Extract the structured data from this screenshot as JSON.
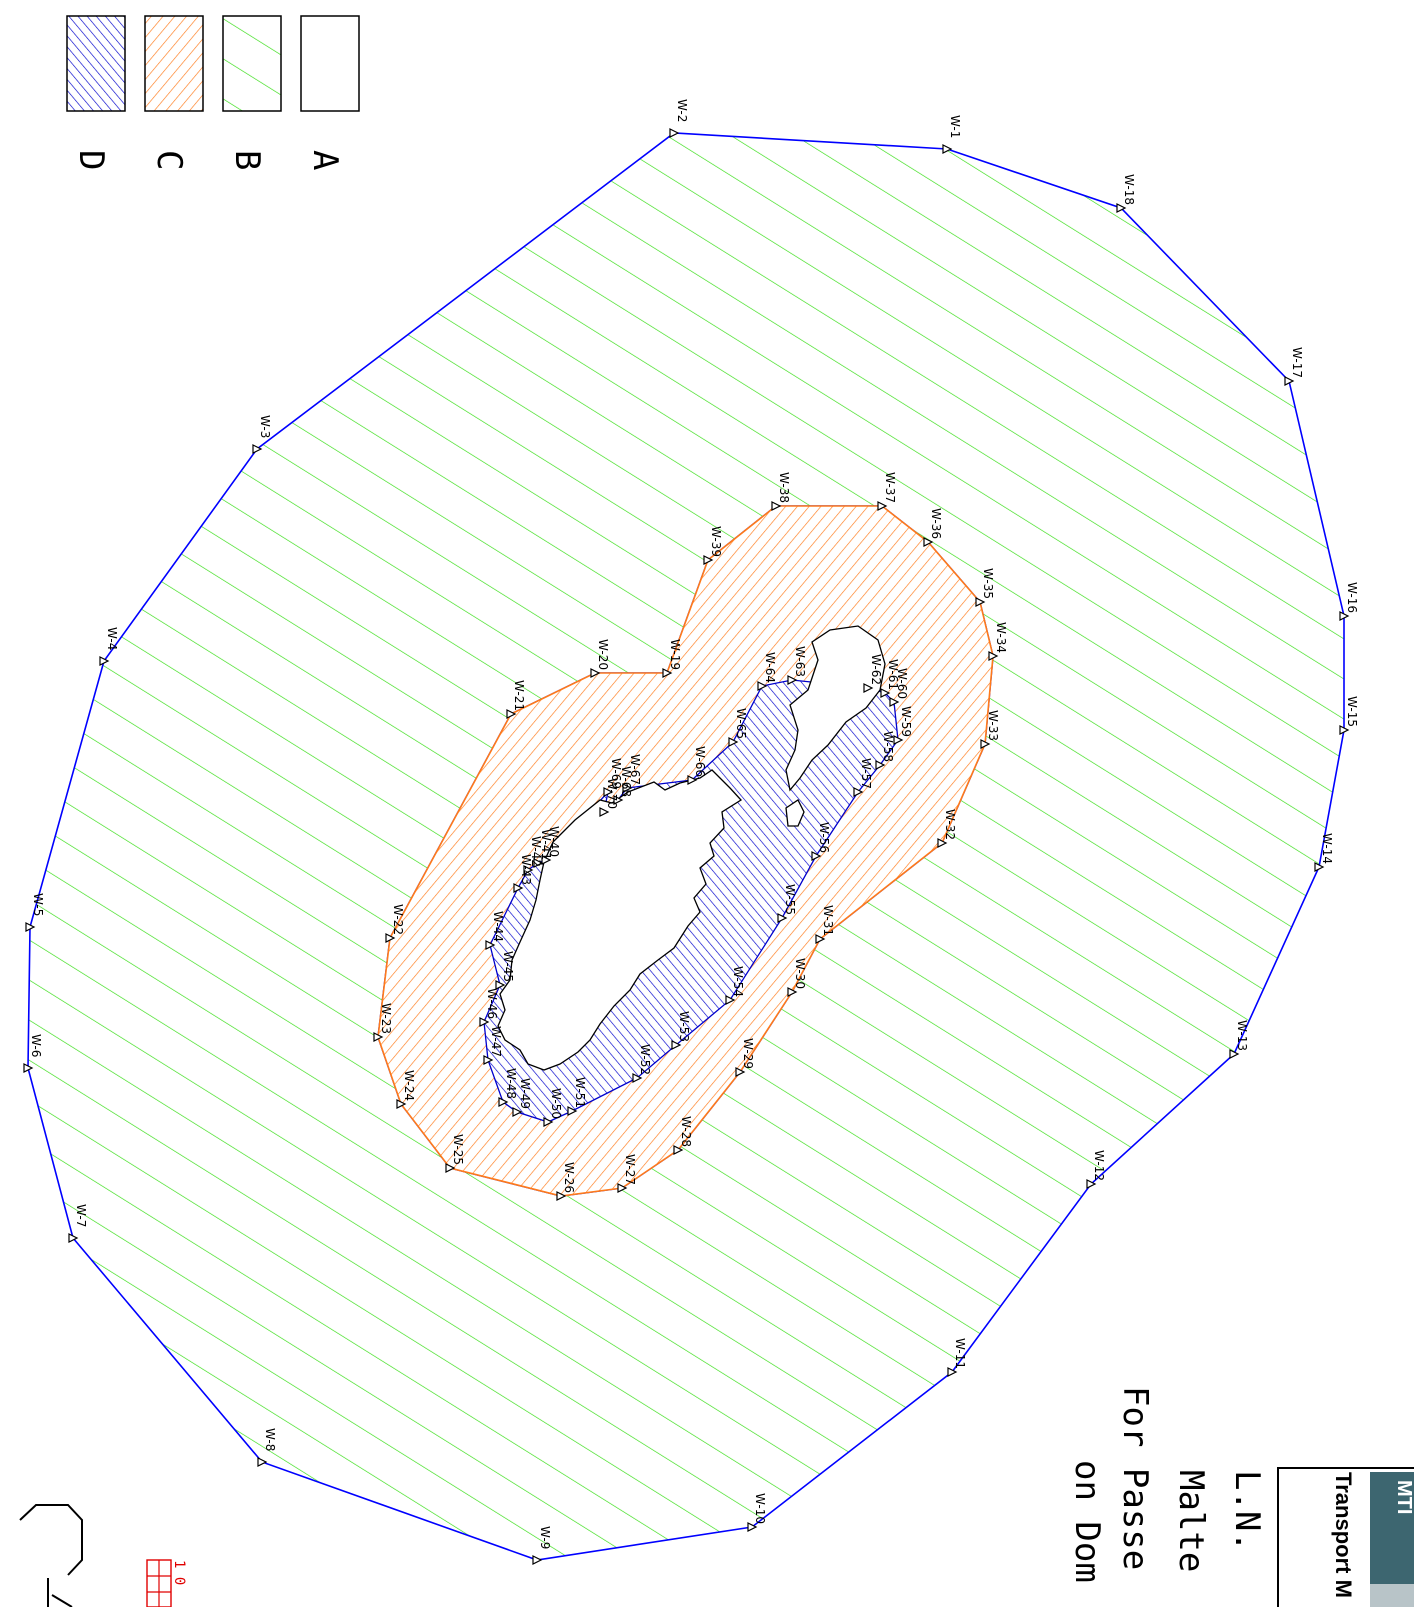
{
  "legend": {
    "items": [
      {
        "key": "A",
        "label": "A",
        "fill": "none"
      },
      {
        "key": "B",
        "label": "B",
        "fill": "green-hatch"
      },
      {
        "key": "C",
        "label": "C",
        "fill": "orange-hatch"
      },
      {
        "key": "D",
        "label": "D",
        "fill": "blue-hatch"
      }
    ]
  },
  "colors": {
    "zone_b_hatch": "#33dd11",
    "zone_b_border": "#0000ff",
    "zone_c_hatch": "#ff7a1a",
    "zone_d_hatch": "#0000cc",
    "island_outline": "#000000",
    "scale_bar": "#e00000",
    "logo_block": "#3d6670"
  },
  "title_block": {
    "logo_text": "Transport M",
    "logo_word": "MTI",
    "line1": "L.N.",
    "line2": "Malte",
    "line3": "For Passe",
    "line4": "on Dom"
  },
  "scale": {
    "label": "1 0"
  },
  "corner_glyph": "C|",
  "waypoint_icon": "triangle-marker-icon",
  "waypoints": [
    {
      "id": "W-1",
      "lon": 947,
      "lat": 149
    },
    {
      "id": "W-2",
      "lon": 674,
      "lat": 133
    },
    {
      "id": "W-3",
      "lon": 257,
      "lat": 449
    },
    {
      "id": "W-4",
      "lon": 104,
      "lat": 661
    },
    {
      "id": "W-5",
      "lon": 30,
      "lat": 927
    },
    {
      "id": "W-6",
      "lon": 28,
      "lat": 1068
    },
    {
      "id": "W-7",
      "lon": 73,
      "lat": 1238
    },
    {
      "id": "W-8",
      "lon": 262,
      "lat": 1462
    },
    {
      "id": "W-9",
      "lon": 537,
      "lat": 1560
    },
    {
      "id": "W-10",
      "lon": 752,
      "lat": 1527
    },
    {
      "id": "W-11",
      "lon": 952,
      "lat": 1372
    },
    {
      "id": "W-12",
      "lon": 1091,
      "lat": 1184
    },
    {
      "id": "W-13",
      "lon": 1234,
      "lat": 1054
    },
    {
      "id": "W-14",
      "lon": 1319,
      "lat": 867
    },
    {
      "id": "W-15",
      "lon": 1344,
      "lat": 730
    },
    {
      "id": "W-16",
      "lon": 1344,
      "lat": 616
    },
    {
      "id": "W-17",
      "lon": 1289,
      "lat": 381
    },
    {
      "id": "W-18",
      "lon": 1121,
      "lat": 208
    },
    {
      "id": "W-19",
      "lon": 667,
      "lat": 673
    },
    {
      "id": "W-20",
      "lon": 595,
      "lat": 673
    },
    {
      "id": "W-21",
      "lon": 511,
      "lat": 714
    },
    {
      "id": "W-22",
      "lon": 390,
      "lat": 938
    },
    {
      "id": "W-23",
      "lon": 378,
      "lat": 1037
    },
    {
      "id": "W-24",
      "lon": 401,
      "lat": 1104
    },
    {
      "id": "W-25",
      "lon": 450,
      "lat": 1168
    },
    {
      "id": "W-26",
      "lon": 561,
      "lat": 1196
    },
    {
      "id": "W-27",
      "lon": 622,
      "lat": 1188
    },
    {
      "id": "W-28",
      "lon": 678,
      "lat": 1150
    },
    {
      "id": "W-29",
      "lon": 740,
      "lat": 1072
    },
    {
      "id": "W-30",
      "lon": 792,
      "lat": 992
    },
    {
      "id": "W-31",
      "lon": 820,
      "lat": 939
    },
    {
      "id": "W-32",
      "lon": 942,
      "lat": 843
    },
    {
      "id": "W-33",
      "lon": 985,
      "lat": 744
    },
    {
      "id": "W-34",
      "lon": 993,
      "lat": 656
    },
    {
      "id": "W-35",
      "lon": 980,
      "lat": 602
    },
    {
      "id": "W-36",
      "lon": 928,
      "lat": 542
    },
    {
      "id": "W-37",
      "lon": 882,
      "lat": 506
    },
    {
      "id": "W-38",
      "lon": 776,
      "lat": 506
    },
    {
      "id": "W-39",
      "lon": 708,
      "lat": 560
    },
    {
      "id": "W-40",
      "lon": 546,
      "lat": 860
    },
    {
      "id": "W-41",
      "lon": 538,
      "lat": 863
    },
    {
      "id": "W-42",
      "lon": 528,
      "lat": 870
    },
    {
      "id": "W-43",
      "lon": 518,
      "lat": 888
    },
    {
      "id": "W-44",
      "lon": 490,
      "lat": 945
    },
    {
      "id": "W-45",
      "lon": 500,
      "lat": 985
    },
    {
      "id": "W-46",
      "lon": 484,
      "lat": 1022
    },
    {
      "id": "W-47",
      "lon": 488,
      "lat": 1060
    },
    {
      "id": "W-48",
      "lon": 503,
      "lat": 1102
    },
    {
      "id": "W-49",
      "lon": 517,
      "lat": 1112
    },
    {
      "id": "W-50",
      "lon": 548,
      "lat": 1122
    },
    {
      "id": "W-51",
      "lon": 572,
      "lat": 1111
    },
    {
      "id": "W-52",
      "lon": 637,
      "lat": 1078
    },
    {
      "id": "W-53",
      "lon": 676,
      "lat": 1045
    },
    {
      "id": "W-54",
      "lon": 730,
      "lat": 1000
    },
    {
      "id": "W-55",
      "lon": 782,
      "lat": 918
    },
    {
      "id": "W-56",
      "lon": 816,
      "lat": 856
    },
    {
      "id": "W-57",
      "lon": 858,
      "lat": 792
    },
    {
      "id": "W-58",
      "lon": 880,
      "lat": 765
    },
    {
      "id": "W-59",
      "lon": 898,
      "lat": 740
    },
    {
      "id": "W-60",
      "lon": 894,
      "lat": 702
    },
    {
      "id": "W-61",
      "lon": 885,
      "lat": 693
    },
    {
      "id": "W-62",
      "lon": 868,
      "lat": 688
    },
    {
      "id": "W-63",
      "lon": 792,
      "lat": 680
    },
    {
      "id": "W-64",
      "lon": 762,
      "lat": 686
    },
    {
      "id": "W-65",
      "lon": 733,
      "lat": 742
    },
    {
      "id": "W-66",
      "lon": 692,
      "lat": 780
    },
    {
      "id": "W-67",
      "lon": 627,
      "lat": 788
    },
    {
      "id": "W-68",
      "lon": 618,
      "lat": 800
    },
    {
      "id": "W-69",
      "lon": 608,
      "lat": 792
    },
    {
      "id": "W-70",
      "lon": 604,
      "lat": 812
    }
  ],
  "zone_b_boundary": [
    "W-1",
    "W-18",
    "W-17",
    "W-16",
    "W-15",
    "W-14",
    "W-13",
    "W-12",
    "W-11",
    "W-10",
    "W-9",
    "W-8",
    "W-7",
    "W-6",
    "W-5",
    "W-4",
    "W-3",
    "W-2"
  ],
  "zone_c_boundary": [
    "W-19",
    "W-39",
    "W-38",
    "W-37",
    "W-36",
    "W-35",
    "W-34",
    "W-33",
    "W-32",
    "W-31",
    "W-30",
    "W-29",
    "W-28",
    "W-27",
    "W-26",
    "W-25",
    "W-24",
    "W-23",
    "W-22",
    "W-21",
    "W-20"
  ],
  "zone_d_outer": [
    "W-70",
    "W-68",
    "W-67",
    "W-66",
    "W-65",
    "W-64",
    "W-63",
    "W-62",
    "W-61",
    "W-60",
    "W-59",
    "W-58",
    "W-57",
    "W-56",
    "W-55",
    "W-54",
    "W-53",
    "W-52",
    "W-51",
    "W-50",
    "W-49",
    "W-48",
    "W-47",
    "W-46",
    "W-45",
    "W-44",
    "W-43",
    "W-42",
    "W-41",
    "W-40",
    "W-69"
  ]
}
